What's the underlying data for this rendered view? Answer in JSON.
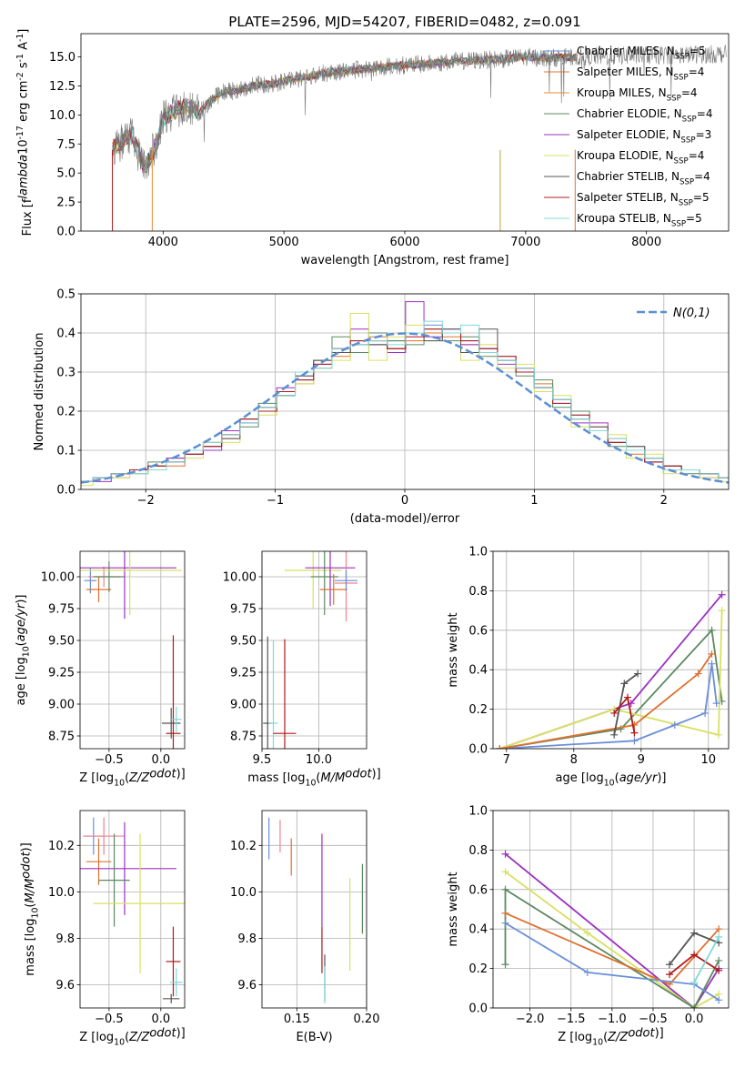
{
  "chart_data": [
    {
      "type": "line",
      "title": "PLATE=2596, MJD=54207, FIBERID=0482, z=0.091",
      "xlabel": "wavelength [Angstrom, rest frame]",
      "ylabel": "Flux [f$_\\lambda$10$^{-17}$ erg cm$^{-2}$ s$^{-1}$ A$^{-1}$]",
      "xlim": [
        3320,
        8680
      ],
      "ylim": [
        0,
        17
      ],
      "xticks": [
        4000,
        5000,
        6000,
        7000,
        8000
      ],
      "yticks": [
        0.0,
        2.5,
        5.0,
        7.5,
        10.0,
        12.5,
        15.0
      ],
      "legend_position": "upper-right",
      "spectrum_overview": {
        "x": [
          3600,
          3650,
          3700,
          3750,
          3800,
          3850,
          3900,
          3950,
          4000,
          4100,
          4200,
          4300,
          4400,
          4500,
          4600,
          4700,
          4800,
          4900,
          5000,
          5200,
          5400,
          5600,
          5800,
          6000,
          6200,
          6400,
          6600,
          6800,
          7000,
          7200,
          7400
        ],
        "y": [
          7.2,
          7.6,
          8.1,
          8.3,
          6.5,
          5.5,
          6.6,
          7.5,
          9.7,
          10.4,
          10.8,
          10.2,
          11.3,
          12.0,
          12.1,
          12.4,
          12.6,
          12.7,
          12.9,
          13.3,
          13.7,
          13.9,
          14.1,
          14.3,
          14.4,
          14.6,
          14.7,
          14.8,
          15.0,
          14.9,
          15.0
        ]
      },
      "series": [
        {
          "name": "Chabrier MILES, N$_{SSP}$=5",
          "color": "#6a8fd8"
        },
        {
          "name": "Salpeter MILES, N$_{SSP}$=4",
          "color": "#e07030"
        },
        {
          "name": "Kroupa MILES, N$_{SSP}$=4",
          "color": "#e88a30"
        },
        {
          "name": "Chabrier ELODIE, N$_{SSP}$=4",
          "color": "#5a8a60"
        },
        {
          "name": "Salpeter ELODIE, N$_{SSP}$=3",
          "color": "#9a30c0"
        },
        {
          "name": "Kroupa ELODIE, N$_{SSP}$=4",
          "color": "#d8e060"
        },
        {
          "name": "Chabrier STELIB, N$_{SSP}$=4",
          "color": "#555555"
        },
        {
          "name": "Salpeter STELIB, N$_{SSP}$=5",
          "color": "#b01818"
        },
        {
          "name": "Kroupa STELIB, N$_{SSP}$=5",
          "color": "#80d8d8"
        }
      ]
    },
    {
      "type": "line",
      "xlabel": "(data-model)/error",
      "ylabel": "Normed distribution",
      "xlim": [
        -2.5,
        2.5
      ],
      "ylim": [
        0,
        0.5
      ],
      "xticks": [
        -2,
        -1,
        0,
        1,
        2
      ],
      "yticks": [
        0.0,
        0.1,
        0.2,
        0.3,
        0.4,
        0.5
      ],
      "legend_position": "upper-right",
      "grid": true,
      "reference_curve": {
        "name": "$\\mathcal{N}(0,1)$",
        "color": "#5b8fd4",
        "style": "dashed"
      },
      "series": [
        {
          "color": "#6a8fd8",
          "values": [
            0.02,
            0.03,
            0.04,
            0.05,
            0.06,
            0.07,
            0.09,
            0.11,
            0.14,
            0.17,
            0.2,
            0.25,
            0.29,
            0.31,
            0.35,
            0.38,
            0.37,
            0.38,
            0.4,
            0.42,
            0.4,
            0.38,
            0.36,
            0.34,
            0.3,
            0.26,
            0.22,
            0.19,
            0.15,
            0.12,
            0.1,
            0.07,
            0.06,
            0.05,
            0.04,
            0.03
          ]
        },
        {
          "color": "#e07030",
          "values": [
            0.02,
            0.03,
            0.03,
            0.05,
            0.06,
            0.06,
            0.1,
            0.12,
            0.13,
            0.18,
            0.21,
            0.24,
            0.27,
            0.33,
            0.34,
            0.37,
            0.39,
            0.36,
            0.38,
            0.4,
            0.39,
            0.37,
            0.35,
            0.33,
            0.31,
            0.27,
            0.23,
            0.18,
            0.16,
            0.13,
            0.09,
            0.08,
            0.05,
            0.05,
            0.04,
            0.03
          ]
        },
        {
          "color": "#5a8a60",
          "values": [
            0.02,
            0.03,
            0.04,
            0.04,
            0.07,
            0.08,
            0.09,
            0.12,
            0.15,
            0.16,
            0.22,
            0.24,
            0.3,
            0.33,
            0.39,
            0.35,
            0.4,
            0.38,
            0.37,
            0.41,
            0.38,
            0.39,
            0.34,
            0.33,
            0.29,
            0.28,
            0.21,
            0.2,
            0.15,
            0.11,
            0.11,
            0.08,
            0.06,
            0.04,
            0.04,
            0.03
          ]
        },
        {
          "color": "#9a30c0",
          "values": [
            0.02,
            0.02,
            0.04,
            0.05,
            0.05,
            0.08,
            0.09,
            0.1,
            0.15,
            0.17,
            0.2,
            0.26,
            0.28,
            0.32,
            0.36,
            0.41,
            0.37,
            0.35,
            0.48,
            0.39,
            0.41,
            0.37,
            0.36,
            0.32,
            0.31,
            0.26,
            0.23,
            0.17,
            0.17,
            0.12,
            0.1,
            0.07,
            0.05,
            0.05,
            0.03,
            0.03
          ]
        },
        {
          "color": "#d8e060",
          "values": [
            0.01,
            0.03,
            0.03,
            0.04,
            0.06,
            0.07,
            0.08,
            0.12,
            0.12,
            0.18,
            0.19,
            0.25,
            0.27,
            0.31,
            0.33,
            0.45,
            0.33,
            0.39,
            0.42,
            0.38,
            0.4,
            0.33,
            0.37,
            0.31,
            0.32,
            0.25,
            0.24,
            0.16,
            0.15,
            0.14,
            0.08,
            0.09,
            0.04,
            0.05,
            0.03,
            0.02
          ]
        },
        {
          "color": "#555555",
          "values": [
            0.02,
            0.03,
            0.04,
            0.05,
            0.06,
            0.07,
            0.1,
            0.11,
            0.13,
            0.18,
            0.21,
            0.24,
            0.29,
            0.33,
            0.35,
            0.37,
            0.37,
            0.36,
            0.4,
            0.38,
            0.41,
            0.35,
            0.41,
            0.33,
            0.3,
            0.26,
            0.23,
            0.18,
            0.16,
            0.12,
            0.11,
            0.08,
            0.06,
            0.05,
            0.04,
            0.03
          ]
        },
        {
          "color": "#b01818",
          "values": [
            0.02,
            0.03,
            0.04,
            0.05,
            0.06,
            0.07,
            0.09,
            0.11,
            0.14,
            0.18,
            0.2,
            0.25,
            0.28,
            0.32,
            0.36,
            0.38,
            0.38,
            0.36,
            0.39,
            0.41,
            0.4,
            0.38,
            0.36,
            0.34,
            0.3,
            0.26,
            0.22,
            0.19,
            0.15,
            0.12,
            0.1,
            0.07,
            0.06,
            0.05,
            0.04,
            0.03
          ]
        },
        {
          "color": "#80d8d8",
          "values": [
            0.02,
            0.03,
            0.04,
            0.04,
            0.05,
            0.07,
            0.1,
            0.12,
            0.14,
            0.17,
            0.21,
            0.24,
            0.3,
            0.31,
            0.36,
            0.37,
            0.38,
            0.37,
            0.4,
            0.43,
            0.4,
            0.42,
            0.35,
            0.33,
            0.31,
            0.26,
            0.23,
            0.18,
            0.15,
            0.13,
            0.1,
            0.08,
            0.05,
            0.05,
            0.04,
            0.03
          ]
        }
      ]
    },
    {
      "type": "scatter",
      "xlabel": "Z [log$_{10}$($Z/Z_\\odot$)]",
      "ylabel": "age  [log$_{10}$($age/yr$)]",
      "xlim": [
        -0.78,
        0.23
      ],
      "ylim": [
        8.65,
        10.2
      ],
      "xticks": [
        -0.5,
        0.0
      ],
      "yticks": [
        8.75,
        9.0,
        9.25,
        9.5,
        9.75,
        10.0
      ],
      "grid": true,
      "points": [
        {
          "color": "#6a8fd8",
          "x": -0.68,
          "y": 9.97,
          "xerr": 0.06,
          "yerr": 0.1
        },
        {
          "color": "#e07030",
          "x": -0.6,
          "y": 9.9,
          "xerr": 0.12,
          "yerr": 0.1
        },
        {
          "color": "#f08090",
          "x": -0.55,
          "y": 10.0,
          "xerr": 0.15,
          "yerr": 0.08
        },
        {
          "color": "#5a8a60",
          "x": -0.5,
          "y": 10.0,
          "xerr": 0.15,
          "yerr": 0.12
        },
        {
          "color": "#9a30c0",
          "x": -0.35,
          "y": 10.07,
          "xerr": 0.5,
          "yerr": 0.4
        },
        {
          "color": "#d8e060",
          "x": -0.3,
          "y": 10.05,
          "xerr": 0.5,
          "yerr": 0.35
        },
        {
          "color": "#555555",
          "x": 0.1,
          "y": 8.85,
          "xerr": 0.09,
          "yerr": 0.12
        },
        {
          "color": "#b01818",
          "x": 0.12,
          "y": 8.77,
          "xerr": 0.07,
          "yerr": 0.77
        },
        {
          "color": "#80d8d8",
          "x": 0.15,
          "y": 8.88,
          "xerr": 0.05,
          "yerr": 0.1
        }
      ]
    },
    {
      "type": "scatter",
      "xlabel": "mass [log$_{10}$($M/M_\\odot$)]",
      "xlim": [
        9.5,
        10.42
      ],
      "ylim": [
        8.65,
        10.2
      ],
      "xticks": [
        9.5,
        10.0
      ],
      "yticks": [
        8.75,
        9.0,
        9.25,
        9.5,
        9.75,
        10.0
      ],
      "grid": true,
      "points": [
        {
          "color": "#555555",
          "x": 9.55,
          "y": 8.85,
          "xerr": 0.04,
          "yerr": 0.68
        },
        {
          "color": "#80d8d8",
          "x": 9.6,
          "y": 8.85,
          "xerr": 0.04,
          "yerr": 0.65
        },
        {
          "color": "#b01818",
          "x": 9.7,
          "y": 8.77,
          "xerr": 0.1,
          "yerr": 0.74
        },
        {
          "color": "#d8e060",
          "x": 9.95,
          "y": 10.05,
          "xerr": 0.25,
          "yerr": 0.3
        },
        {
          "color": "#5a8a60",
          "x": 10.05,
          "y": 10.0,
          "xerr": 0.12,
          "yerr": 0.3
        },
        {
          "color": "#9a30c0",
          "x": 10.1,
          "y": 10.07,
          "xerr": 0.22,
          "yerr": 0.3
        },
        {
          "color": "#e07030",
          "x": 10.13,
          "y": 9.9,
          "xerr": 0.12,
          "yerr": 0.12
        },
        {
          "color": "#f08090",
          "x": 10.24,
          "y": 9.95,
          "xerr": 0.1,
          "yerr": 0.3
        },
        {
          "color": "#6a8fd8",
          "x": 10.24,
          "y": 9.97,
          "xerr": 0.1,
          "yerr": 0.08
        }
      ]
    },
    {
      "type": "line",
      "xlabel": "age  [log$_{10}$($age/yr$)]",
      "ylabel": "mass weight",
      "xlim": [
        6.8,
        10.3
      ],
      "ylim": [
        0.0,
        1.0
      ],
      "xticks": [
        7,
        8,
        9,
        10
      ],
      "yticks": [
        0.0,
        0.2,
        0.4,
        0.6,
        0.8,
        1.0
      ],
      "grid": true,
      "series": [
        {
          "color": "#9a30c0",
          "x": [
            6.9,
            8.85,
            10.2
          ],
          "y": [
            0.0,
            0.23,
            0.78
          ]
        },
        {
          "color": "#5a8a60",
          "x": [
            6.9,
            8.7,
            10.05,
            10.2
          ],
          "y": [
            0.0,
            0.1,
            0.6,
            0.24
          ]
        },
        {
          "color": "#d8e060",
          "x": [
            6.9,
            8.6,
            10.15,
            10.2
          ],
          "y": [
            0.0,
            0.2,
            0.07,
            0.7
          ]
        },
        {
          "color": "#6a8fd8",
          "x": [
            6.9,
            8.9,
            9.5,
            9.95,
            10.05,
            10.12
          ],
          "y": [
            0.0,
            0.04,
            0.12,
            0.18,
            0.43,
            0.23
          ]
        },
        {
          "color": "#e07030",
          "x": [
            6.9,
            8.9,
            9.85,
            10.05
          ],
          "y": [
            0.0,
            0.12,
            0.38,
            0.48
          ]
        },
        {
          "color": "#555555",
          "x": [
            8.6,
            8.75,
            8.95
          ],
          "y": [
            0.07,
            0.33,
            0.38
          ]
        },
        {
          "color": "#b01818",
          "x": [
            8.6,
            8.8,
            8.9
          ],
          "y": [
            0.18,
            0.26,
            0.08
          ]
        }
      ]
    },
    {
      "type": "scatter",
      "xlabel": "Z [log$_{10}$($Z/Z_\\odot$)]",
      "ylabel": "mass [log$_{10}$($M/M_\\odot$)]",
      "xlim": [
        -0.78,
        0.23
      ],
      "ylim": [
        9.5,
        10.35
      ],
      "xticks": [
        -0.5,
        0.0
      ],
      "yticks": [
        9.6,
        9.8,
        10.0,
        10.2
      ],
      "grid": true,
      "points": [
        {
          "color": "#6a8fd8",
          "x": -0.65,
          "y": 10.24,
          "xerr": 0.1,
          "yerr": 0.08
        },
        {
          "color": "#f08090",
          "x": -0.55,
          "y": 10.24,
          "xerr": 0.2,
          "yerr": 0.08
        },
        {
          "color": "#e07030",
          "x": -0.6,
          "y": 10.13,
          "xerr": 0.12,
          "yerr": 0.1
        },
        {
          "color": "#9a30c0",
          "x": -0.35,
          "y": 10.1,
          "xerr": 0.5,
          "yerr": 0.2
        },
        {
          "color": "#5a8a60",
          "x": -0.45,
          "y": 10.05,
          "xerr": 0.15,
          "yerr": 0.2
        },
        {
          "color": "#d8e060",
          "x": -0.2,
          "y": 9.95,
          "xerr": 0.45,
          "yerr": 0.3
        },
        {
          "color": "#b01818",
          "x": 0.12,
          "y": 9.7,
          "xerr": 0.07,
          "yerr": 0.15
        },
        {
          "color": "#80d8d8",
          "x": 0.15,
          "y": 9.61,
          "xerr": 0.06,
          "yerr": 0.06
        },
        {
          "color": "#555555",
          "x": 0.1,
          "y": 9.54,
          "xerr": 0.08,
          "yerr": 0.02
        }
      ]
    },
    {
      "type": "scatter",
      "xlabel": "E(B-V)",
      "xlim": [
        0.125,
        0.2
      ],
      "ylim": [
        9.5,
        10.35
      ],
      "xticks": [
        0.15,
        0.2
      ],
      "yticks": [
        9.6,
        9.8,
        10.0,
        10.2
      ],
      "grid": true,
      "points": [
        {
          "color": "#6a8fd8",
          "x": 0.13,
          "y": 10.23,
          "yerr": 0.09
        },
        {
          "color": "#f08090",
          "x": 0.138,
          "y": 10.24,
          "yerr": 0.07
        },
        {
          "color": "#e07030",
          "x": 0.146,
          "y": 10.15,
          "yerr": 0.08
        },
        {
          "color": "#9a30c0",
          "x": 0.168,
          "y": 10.05,
          "yerr": 0.2
        },
        {
          "color": "#b01818",
          "x": 0.168,
          "y": 9.75,
          "yerr": 0.1
        },
        {
          "color": "#555555",
          "x": 0.17,
          "y": 9.63,
          "yerr": 0.1
        },
        {
          "color": "#80d8d8",
          "x": 0.17,
          "y": 9.6,
          "yerr": 0.08
        },
        {
          "color": "#d8e060",
          "x": 0.188,
          "y": 9.86,
          "yerr": 0.2
        },
        {
          "color": "#5a8a60",
          "x": 0.197,
          "y": 9.97,
          "yerr": 0.15
        }
      ]
    },
    {
      "type": "line",
      "xlabel": "Z [log$_{10}$($Z/Z_\\odot$)]",
      "ylabel": "mass weight",
      "xlim": [
        -2.45,
        0.42
      ],
      "ylim": [
        0.0,
        1.0
      ],
      "xticks": [
        -2.0,
        -1.5,
        -1.0,
        -0.5,
        0.0
      ],
      "yticks": [
        0.0,
        0.2,
        0.4,
        0.6,
        0.8,
        1.0
      ],
      "grid": true,
      "series": [
        {
          "color": "#9a30c0",
          "x": [
            -2.3,
            0.0,
            0.3
          ],
          "y": [
            0.78,
            0.0,
            0.2
          ]
        },
        {
          "color": "#d8e060",
          "x": [
            -2.3,
            -1.3,
            0.0,
            0.3
          ],
          "y": [
            0.69,
            0.38,
            0.0,
            0.07
          ]
        },
        {
          "color": "#5a8a60",
          "x": [
            -2.3,
            -2.3,
            0.0,
            0.3
          ],
          "y": [
            0.22,
            0.6,
            0.0,
            0.24
          ]
        },
        {
          "color": "#e07030",
          "x": [
            -2.3,
            -0.3,
            0.3
          ],
          "y": [
            0.48,
            0.12,
            0.4
          ]
        },
        {
          "color": "#6a8fd8",
          "x": [
            -2.3,
            -1.3,
            0.0,
            0.3
          ],
          "y": [
            0.43,
            0.18,
            0.12,
            0.04
          ]
        },
        {
          "color": "#555555",
          "x": [
            -0.3,
            0.0,
            0.3
          ],
          "y": [
            0.22,
            0.38,
            0.33
          ]
        },
        {
          "color": "#b01818",
          "x": [
            -0.3,
            0.0,
            0.3
          ],
          "y": [
            0.17,
            0.27,
            0.19
          ]
        },
        {
          "color": "#80d8d8",
          "x": [
            0.0,
            0.3
          ],
          "y": [
            0.13,
            0.36
          ]
        }
      ]
    }
  ]
}
